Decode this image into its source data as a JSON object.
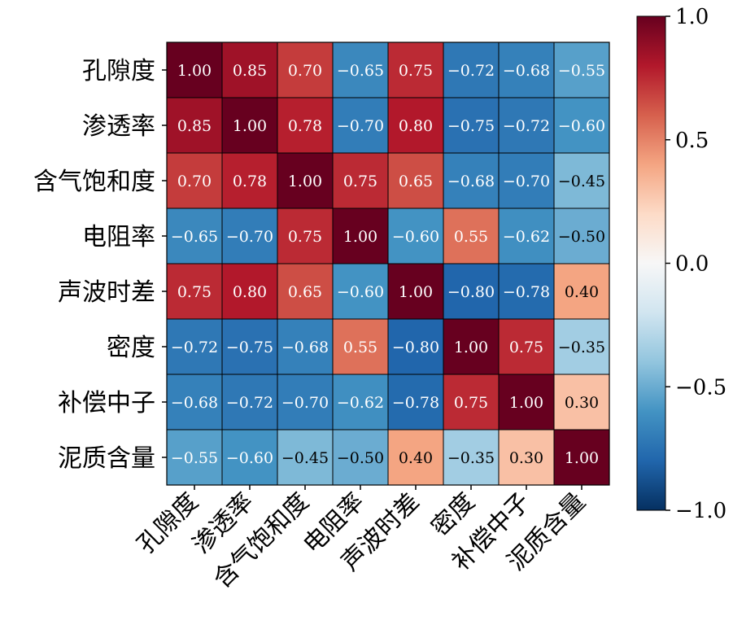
{
  "chart_data": {
    "type": "heatmap",
    "title": "",
    "xlabel": "",
    "ylabel": "",
    "variables": [
      "孔隙度",
      "渗透率",
      "含气饱和度",
      "电阻率",
      "声波时差",
      "密度",
      "补偿中子",
      "泥质含量"
    ],
    "matrix": [
      [
        1.0,
        0.85,
        0.7,
        -0.65,
        0.75,
        -0.72,
        -0.68,
        -0.55
      ],
      [
        0.85,
        1.0,
        0.78,
        -0.7,
        0.8,
        -0.75,
        -0.72,
        -0.6
      ],
      [
        0.7,
        0.78,
        1.0,
        0.75,
        0.65,
        -0.68,
        -0.7,
        -0.45
      ],
      [
        -0.65,
        -0.7,
        0.75,
        1.0,
        -0.6,
        0.55,
        -0.62,
        -0.5
      ],
      [
        0.75,
        0.8,
        0.65,
        -0.6,
        1.0,
        -0.8,
        -0.78,
        0.4
      ],
      [
        -0.72,
        -0.75,
        -0.68,
        0.55,
        -0.8,
        1.0,
        0.75,
        -0.35
      ],
      [
        -0.68,
        -0.72,
        -0.7,
        -0.62,
        -0.78,
        0.75,
        1.0,
        0.3
      ],
      [
        -0.55,
        -0.6,
        -0.45,
        -0.5,
        0.4,
        -0.35,
        0.3,
        1.0
      ]
    ],
    "value_format": "2 decimals",
    "colormap": "RdBu_r",
    "vmin": -1.0,
    "vmax": 1.0,
    "colorbar_ticks": [
      "1.0",
      "0.5",
      "0.0",
      "−0.5",
      "−1.0"
    ],
    "x_tick_rotation": "45 degrees",
    "legend_placement": "right (colorbar)"
  }
}
